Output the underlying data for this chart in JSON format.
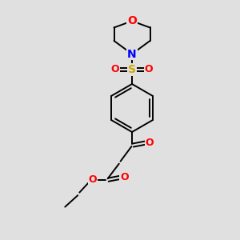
{
  "background_color": "#e0e0e0",
  "bond_color": "#000000",
  "atom_colors": {
    "O": "#ff0000",
    "N": "#0000ff",
    "S": "#ccaa00",
    "C": "#000000"
  },
  "figsize": [
    3.0,
    3.0
  ],
  "dpi": 100,
  "xlim": [
    0,
    10
  ],
  "ylim": [
    0,
    10
  ]
}
